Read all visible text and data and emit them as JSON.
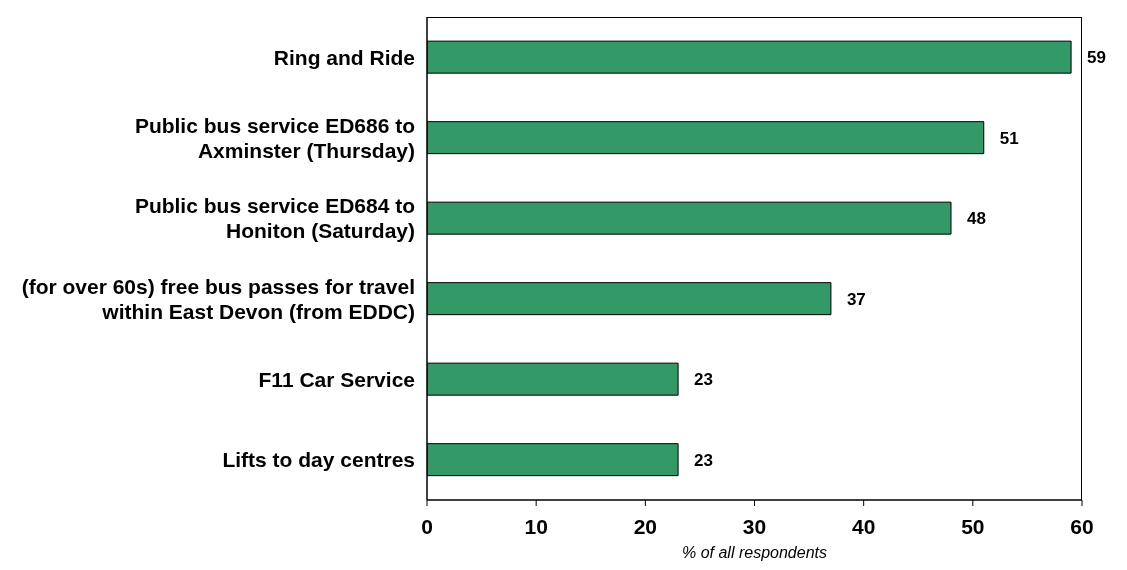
{
  "chart_data": {
    "type": "bar",
    "orientation": "horizontal",
    "categories": [
      "Ring and Ride",
      "Public bus service ED686 to\nAxminster (Thursday)",
      "Public bus service ED684 to\nHoniton (Saturday)",
      "(for over 60s) free bus passes for travel\nwithin East Devon (from EDDC)",
      "F11 Car Service",
      "Lifts to day centres"
    ],
    "values": [
      59,
      51,
      48,
      37,
      23,
      23
    ],
    "color": "#339966",
    "xlabel": "% of all respondents",
    "xlim": [
      0,
      60
    ],
    "xticks": [
      0,
      10,
      20,
      30,
      40,
      50,
      60
    ],
    "data_labels": true
  }
}
